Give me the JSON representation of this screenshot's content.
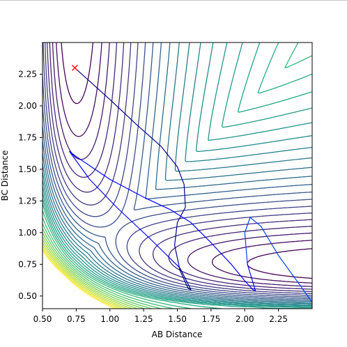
{
  "chart_data": {
    "type": "contour",
    "title": "",
    "xlabel": "AB Distance",
    "ylabel": "BC Distance",
    "xlim": [
      0.5,
      2.5
    ],
    "ylim": [
      0.4,
      2.5
    ],
    "x_ticks": [
      0.5,
      0.75,
      1.0,
      1.25,
      1.5,
      1.75,
      2.0,
      2.25
    ],
    "x_tick_labels": [
      "0.50",
      "0.75",
      "1.00",
      "1.25",
      "1.50",
      "1.75",
      "2.00",
      "2.25"
    ],
    "y_ticks": [
      0.5,
      0.75,
      1.0,
      1.25,
      1.5,
      1.75,
      2.0,
      2.25
    ],
    "y_tick_labels": [
      "0.50",
      "0.75",
      "1.00",
      "1.25",
      "1.50",
      "1.75",
      "2.00",
      "2.25"
    ],
    "grid": false,
    "colormap": "viridis",
    "marker": {
      "x": 0.74,
      "y": 2.3,
      "symbol": "x",
      "color": "#ff0000"
    },
    "trajectory": {
      "colors": [
        "#00008b",
        "#0000ff",
        "#0044ee"
      ],
      "points": [
        [
          0.74,
          2.3
        ],
        [
          1.0,
          2.05
        ],
        [
          1.2,
          1.85
        ],
        [
          1.38,
          1.68
        ],
        [
          1.5,
          1.52
        ],
        [
          1.55,
          1.38
        ],
        [
          1.56,
          1.2
        ],
        [
          1.5,
          1.08
        ],
        [
          1.48,
          0.9
        ],
        [
          1.52,
          0.7
        ],
        [
          1.58,
          0.56
        ],
        [
          1.6,
          0.55
        ],
        [
          1.52,
          0.72
        ],
        [
          1.3,
          0.95
        ],
        [
          1.05,
          1.2
        ],
        [
          0.85,
          1.42
        ],
        [
          0.7,
          1.64
        ],
        [
          0.75,
          1.6
        ],
        [
          1.0,
          1.42
        ],
        [
          1.25,
          1.28
        ],
        [
          1.45,
          1.18
        ],
        [
          1.6,
          1.08
        ],
        [
          1.75,
          0.92
        ],
        [
          1.9,
          0.75
        ],
        [
          2.0,
          0.62
        ],
        [
          2.06,
          0.55
        ],
        [
          2.08,
          0.54
        ],
        [
          2.02,
          0.75
        ],
        [
          2.0,
          1.0
        ],
        [
          2.04,
          1.12
        ],
        [
          2.12,
          1.05
        ],
        [
          2.25,
          0.82
        ],
        [
          2.4,
          0.6
        ],
        [
          2.5,
          0.45
        ]
      ]
    }
  }
}
